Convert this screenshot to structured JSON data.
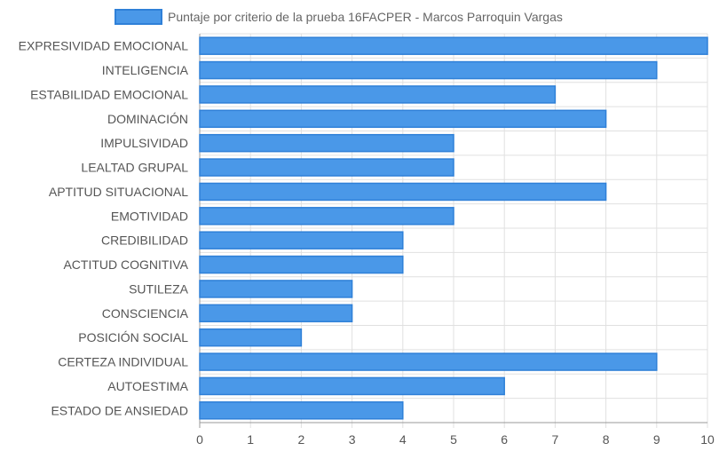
{
  "chart_data": {
    "type": "bar",
    "orientation": "horizontal",
    "categories": [
      "EXPRESIVIDAD EMOCIONAL",
      "INTELIGENCIA",
      "ESTABILIDAD EMOCIONAL",
      "DOMINACIÓN",
      "IMPULSIVIDAD",
      "LEALTAD GRUPAL",
      "APTITUD SITUACIONAL",
      "EMOTIVIDAD",
      "CREDIBILIDAD",
      "ACTITUD COGNITIVA",
      "SUTILEZA",
      "CONSCIENCIA",
      "POSICIÓN SOCIAL",
      "CERTEZA INDIVIDUAL",
      "AUTOESTIMA",
      "ESTADO DE ANSIEDAD"
    ],
    "series": [
      {
        "name": "Puntaje por criterio de la prueba 16FACPER - Marcos Parroquin Vargas",
        "values": [
          10,
          9,
          7,
          8,
          5,
          5,
          8,
          5,
          4,
          4,
          3,
          3,
          2,
          9,
          6,
          4
        ]
      }
    ],
    "xlim": [
      0,
      10
    ],
    "x_ticks": [
      "0",
      "1",
      "2",
      "3",
      "4",
      "5",
      "6",
      "7",
      "8",
      "9",
      "10"
    ],
    "grid": true,
    "legend_position": "top",
    "colors": {
      "bar_fill": "#4a98e8",
      "bar_stroke": "#2f80d8",
      "grid": "#e0e0e0",
      "axis": "#999999",
      "text": "#555555"
    }
  }
}
